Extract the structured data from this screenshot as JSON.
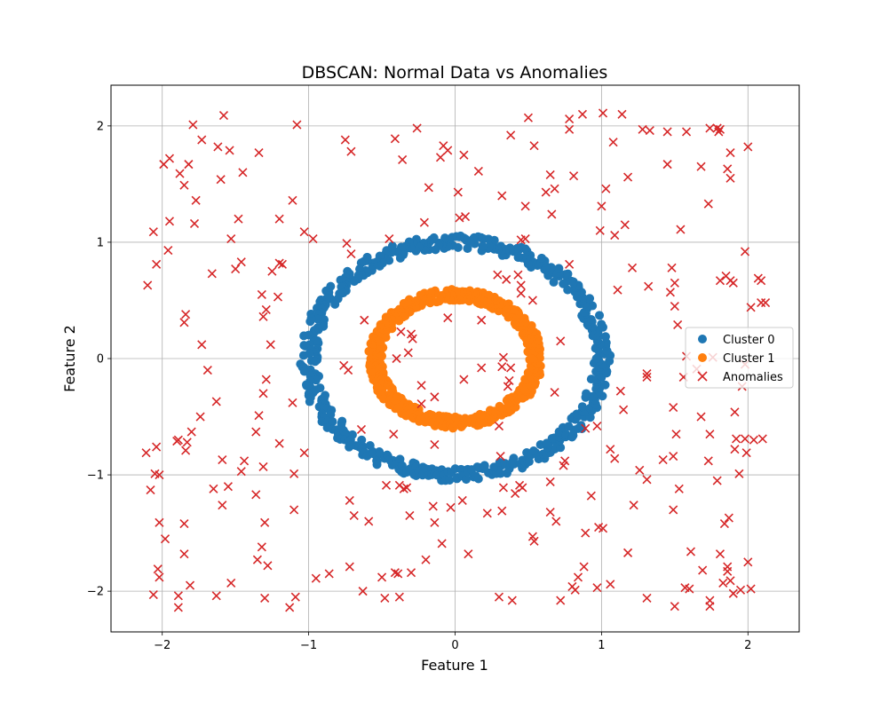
{
  "chart_data": {
    "type": "scatter",
    "title": "DBSCAN: Normal Data vs Anomalies",
    "xlabel": "Feature 1",
    "ylabel": "Feature 2",
    "xlim": [
      -2.35,
      2.35
    ],
    "ylim": [
      -2.35,
      2.35
    ],
    "xticks": [
      -2,
      -1,
      0,
      1,
      2
    ],
    "yticks": [
      -2,
      -1,
      0,
      1,
      2
    ],
    "xtick_labels": [
      "−2",
      "−1",
      "0",
      "1",
      "2"
    ],
    "ytick_labels": [
      "−2",
      "−1",
      "0",
      "1",
      "2"
    ],
    "grid": true,
    "legend_position": "center-right",
    "series": [
      {
        "name": "Cluster 0",
        "marker": "circle",
        "color": "#1f77b4",
        "shape": "ring",
        "center": [
          0,
          0
        ],
        "radius_mean": 1.0,
        "radius_spread": 0.06,
        "n_points": 500
      },
      {
        "name": "Cluster 1",
        "marker": "circle",
        "color": "#ff7f0e",
        "shape": "ring",
        "center": [
          0,
          0
        ],
        "radius_mean": 0.55,
        "radius_spread": 0.05,
        "n_points": 500
      },
      {
        "name": "Anomalies",
        "marker": "x",
        "color": "#d62728",
        "points": [
          [
            -2.1,
            0.63
          ],
          [
            -2.06,
            1.09
          ],
          [
            -2.04,
            0.81
          ],
          [
            -1.99,
            1.67
          ],
          [
            -1.95,
            1.72
          ],
          [
            -1.96,
            0.93
          ],
          [
            -1.95,
            1.18
          ],
          [
            -1.88,
            1.59
          ],
          [
            -1.85,
            1.49
          ],
          [
            -1.82,
            1.67
          ],
          [
            -1.79,
            2.01
          ],
          [
            -1.77,
            1.36
          ],
          [
            -1.78,
            1.16
          ],
          [
            -1.73,
            1.88
          ],
          [
            -1.58,
            2.09
          ],
          [
            -1.62,
            1.82
          ],
          [
            -1.6,
            1.54
          ],
          [
            -1.54,
            1.79
          ],
          [
            -1.48,
            1.2
          ],
          [
            -1.45,
            1.6
          ],
          [
            -1.53,
            1.03
          ],
          [
            -1.5,
            0.77
          ],
          [
            -1.46,
            0.83
          ],
          [
            -1.66,
            0.73
          ],
          [
            -1.34,
            1.77
          ],
          [
            -1.25,
            0.75
          ],
          [
            -1.2,
            0.82
          ],
          [
            -1.18,
            0.81
          ],
          [
            -1.2,
            1.2
          ],
          [
            -1.11,
            1.36
          ],
          [
            -1.08,
            2.01
          ],
          [
            -1.03,
            1.09
          ],
          [
            -0.97,
            1.03
          ],
          [
            -1.21,
            0.53
          ],
          [
            -1.32,
            0.55
          ],
          [
            -1.29,
            0.42
          ],
          [
            -1.31,
            0.36
          ],
          [
            -1.26,
            0.12
          ],
          [
            -1.84,
            0.38
          ],
          [
            -1.85,
            0.31
          ],
          [
            -1.73,
            0.12
          ],
          [
            -1.69,
            -0.1
          ],
          [
            -1.63,
            -0.37
          ],
          [
            -1.74,
            -0.5
          ],
          [
            -1.8,
            -0.63
          ],
          [
            -1.83,
            -0.72
          ],
          [
            -1.89,
            -0.7
          ],
          [
            -1.84,
            -0.79
          ],
          [
            -1.9,
            -0.71
          ],
          [
            -2.11,
            -0.81
          ],
          [
            -2.04,
            -0.76
          ],
          [
            -2.02,
            -1.0
          ],
          [
            -2.05,
            -0.99
          ],
          [
            -2.08,
            -1.13
          ],
          [
            -2.02,
            -1.41
          ],
          [
            -1.98,
            -1.55
          ],
          [
            -2.03,
            -1.81
          ],
          [
            -2.02,
            -1.88
          ],
          [
            -2.06,
            -2.03
          ],
          [
            -1.89,
            -2.04
          ],
          [
            -1.89,
            -2.14
          ],
          [
            -1.81,
            -1.95
          ],
          [
            -1.85,
            -1.68
          ],
          [
            -1.85,
            -1.42
          ],
          [
            -1.65,
            -1.12
          ],
          [
            -1.59,
            -0.87
          ],
          [
            -1.55,
            -1.1
          ],
          [
            -1.59,
            -1.26
          ],
          [
            -1.63,
            -2.04
          ],
          [
            -1.53,
            -1.93
          ],
          [
            -1.44,
            -0.88
          ],
          [
            -1.46,
            -0.97
          ],
          [
            -1.36,
            -1.17
          ],
          [
            -1.36,
            -0.63
          ],
          [
            -1.34,
            -0.49
          ],
          [
            -1.31,
            -0.3
          ],
          [
            -1.29,
            -0.18
          ],
          [
            -1.2,
            -0.73
          ],
          [
            -1.31,
            -0.93
          ],
          [
            -1.3,
            -1.41
          ],
          [
            -1.32,
            -1.62
          ],
          [
            -1.35,
            -1.73
          ],
          [
            -1.28,
            -1.78
          ],
          [
            -1.3,
            -2.06
          ],
          [
            -1.13,
            -2.14
          ],
          [
            -1.09,
            -2.05
          ],
          [
            -1.1,
            -1.3
          ],
          [
            -1.1,
            -0.99
          ],
          [
            -1.03,
            -0.81
          ],
          [
            -1.11,
            -0.38
          ],
          [
            -0.95,
            -1.89
          ],
          [
            -0.86,
            -1.85
          ],
          [
            -0.72,
            -1.79
          ],
          [
            -0.63,
            -2.0
          ],
          [
            -0.72,
            -1.22
          ],
          [
            -0.69,
            -1.35
          ],
          [
            -0.59,
            -1.4
          ],
          [
            -0.76,
            -0.06
          ],
          [
            -0.73,
            -0.1
          ],
          [
            -0.64,
            -0.61
          ],
          [
            -0.42,
            -0.65
          ],
          [
            -0.47,
            -1.09
          ],
          [
            -0.38,
            -1.09
          ],
          [
            -0.33,
            -1.11
          ],
          [
            -0.35,
            -1.12
          ],
          [
            -0.31,
            -1.35
          ],
          [
            -0.41,
            -1.84
          ],
          [
            -0.39,
            -1.85
          ],
          [
            -0.38,
            -2.05
          ],
          [
            -0.48,
            -2.06
          ],
          [
            -0.5,
            -1.88
          ],
          [
            -0.3,
            -1.84
          ],
          [
            -0.2,
            -1.73
          ],
          [
            -0.14,
            -1.41
          ],
          [
            -0.15,
            -1.27
          ],
          [
            -0.03,
            -1.28
          ],
          [
            -0.09,
            -1.59
          ],
          [
            0.09,
            -1.68
          ],
          [
            0.05,
            -1.22
          ],
          [
            -0.14,
            -0.74
          ],
          [
            -0.14,
            -0.33
          ],
          [
            -0.23,
            -0.39
          ],
          [
            -0.23,
            -0.23
          ],
          [
            -0.4,
            0.0
          ],
          [
            -0.32,
            0.05
          ],
          [
            -0.29,
            0.17
          ],
          [
            -0.37,
            0.23
          ],
          [
            -0.3,
            0.21
          ],
          [
            -0.62,
            0.33
          ],
          [
            -0.74,
            0.99
          ],
          [
            -0.71,
            0.9
          ],
          [
            -0.75,
            1.88
          ],
          [
            -0.71,
            1.78
          ],
          [
            -0.41,
            1.89
          ],
          [
            -0.36,
            1.71
          ],
          [
            -0.45,
            1.03
          ],
          [
            -0.26,
            1.98
          ],
          [
            -0.18,
            1.47
          ],
          [
            -0.21,
            1.17
          ],
          [
            -0.1,
            1.73
          ],
          [
            -0.08,
            1.83
          ],
          [
            -0.05,
            1.79
          ],
          [
            0.06,
            1.75
          ],
          [
            0.02,
            1.43
          ],
          [
            0.03,
            1.21
          ],
          [
            0.07,
            1.22
          ],
          [
            0.16,
            1.61
          ],
          [
            -0.05,
            0.35
          ],
          [
            0.18,
            0.33
          ],
          [
            0.06,
            -0.18
          ],
          [
            0.18,
            -0.08
          ],
          [
            0.32,
            -0.07
          ],
          [
            0.37,
            -0.19
          ],
          [
            0.36,
            -0.24
          ],
          [
            0.38,
            -0.08
          ],
          [
            0.33,
            0.01
          ],
          [
            0.29,
            0.72
          ],
          [
            0.35,
            0.68
          ],
          [
            0.45,
            0.63
          ],
          [
            0.45,
            0.56
          ],
          [
            0.43,
            0.72
          ],
          [
            0.53,
            0.5
          ],
          [
            0.3,
            -0.58
          ],
          [
            0.31,
            -0.84
          ],
          [
            0.33,
            -1.11
          ],
          [
            0.41,
            -1.16
          ],
          [
            0.46,
            -1.11
          ],
          [
            0.44,
            -1.09
          ],
          [
            0.22,
            -1.33
          ],
          [
            0.32,
            -1.31
          ],
          [
            0.53,
            -1.53
          ],
          [
            0.54,
            -1.57
          ],
          [
            0.3,
            -2.05
          ],
          [
            0.39,
            -2.08
          ],
          [
            0.72,
            -2.08
          ],
          [
            0.8,
            -1.96
          ],
          [
            0.82,
            -1.99
          ],
          [
            0.84,
            -1.88
          ],
          [
            0.88,
            -1.79
          ],
          [
            0.97,
            -1.97
          ],
          [
            1.06,
            -1.94
          ],
          [
            0.89,
            -1.5
          ],
          [
            0.98,
            -1.45
          ],
          [
            1.01,
            -1.46
          ],
          [
            0.93,
            -1.18
          ],
          [
            0.65,
            -1.06
          ],
          [
            0.65,
            -1.32
          ],
          [
            0.69,
            -1.4
          ],
          [
            0.75,
            -0.88
          ],
          [
            0.74,
            -0.92
          ],
          [
            0.68,
            -0.29
          ],
          [
            0.72,
            0.15
          ],
          [
            0.89,
            -0.6
          ],
          [
            0.97,
            -0.58
          ],
          [
            1.06,
            -0.78
          ],
          [
            1.09,
            -0.86
          ],
          [
            1.13,
            -0.28
          ],
          [
            1.15,
            -0.44
          ],
          [
            1.31,
            -0.13
          ],
          [
            1.31,
            -0.16
          ],
          [
            1.26,
            -0.96
          ],
          [
            1.31,
            -1.04
          ],
          [
            1.42,
            -0.87
          ],
          [
            1.49,
            -0.84
          ],
          [
            1.51,
            -0.65
          ],
          [
            1.49,
            -0.42
          ],
          [
            1.53,
            -1.12
          ],
          [
            1.49,
            -1.3
          ],
          [
            1.22,
            -1.26
          ],
          [
            1.18,
            -1.67
          ],
          [
            1.31,
            -2.06
          ],
          [
            1.5,
            -2.13
          ],
          [
            1.57,
            -1.97
          ],
          [
            1.6,
            -1.98
          ],
          [
            1.61,
            -1.66
          ],
          [
            1.69,
            -1.82
          ],
          [
            1.74,
            -2.08
          ],
          [
            1.74,
            -2.13
          ],
          [
            1.81,
            -1.68
          ],
          [
            1.83,
            -1.93
          ],
          [
            1.86,
            -1.79
          ],
          [
            1.86,
            -1.83
          ],
          [
            1.88,
            -1.91
          ],
          [
            1.9,
            -2.02
          ],
          [
            1.95,
            -1.99
          ],
          [
            2.0,
            -1.75
          ],
          [
            2.02,
            -1.98
          ],
          [
            1.84,
            -1.42
          ],
          [
            1.87,
            -1.37
          ],
          [
            1.79,
            -1.05
          ],
          [
            1.73,
            -0.88
          ],
          [
            1.74,
            -0.65
          ],
          [
            1.68,
            -0.5
          ],
          [
            1.56,
            -0.16
          ],
          [
            1.65,
            -0.09
          ],
          [
            1.58,
            0.02
          ],
          [
            1.76,
            0.01
          ],
          [
            1.94,
            -0.99
          ],
          [
            1.91,
            -0.78
          ],
          [
            1.92,
            -0.69
          ],
          [
            1.98,
            -0.69
          ],
          [
            1.99,
            -0.81
          ],
          [
            2.04,
            -0.7
          ],
          [
            2.1,
            -0.69
          ],
          [
            1.91,
            -0.46
          ],
          [
            1.96,
            -0.24
          ],
          [
            1.98,
            -0.05
          ],
          [
            2.02,
            0.44
          ],
          [
            2.07,
            0.69
          ],
          [
            2.09,
            0.67
          ],
          [
            2.09,
            0.48
          ],
          [
            2.12,
            0.48
          ],
          [
            1.98,
            0.92
          ],
          [
            1.81,
            0.67
          ],
          [
            1.85,
            0.71
          ],
          [
            1.88,
            0.67
          ],
          [
            1.9,
            0.65
          ],
          [
            1.52,
            0.29
          ],
          [
            1.5,
            0.45
          ],
          [
            1.5,
            0.65
          ],
          [
            1.47,
            0.57
          ],
          [
            1.48,
            0.78
          ],
          [
            1.32,
            0.62
          ],
          [
            1.21,
            0.78
          ],
          [
            1.11,
            0.59
          ],
          [
            1.16,
            1.15
          ],
          [
            1.09,
            1.06
          ],
          [
            1.0,
            1.31
          ],
          [
            1.03,
            1.46
          ],
          [
            0.99,
            1.1
          ],
          [
            1.08,
            1.86
          ],
          [
            1.14,
            2.1
          ],
          [
            1.01,
            2.11
          ],
          [
            0.87,
            2.1
          ],
          [
            0.78,
            2.06
          ],
          [
            0.78,
            1.97
          ],
          [
            0.81,
            1.57
          ],
          [
            0.65,
            1.58
          ],
          [
            0.68,
            1.46
          ],
          [
            0.62,
            1.43
          ],
          [
            0.66,
            1.24
          ],
          [
            0.54,
            1.83
          ],
          [
            0.5,
            2.07
          ],
          [
            0.38,
            1.92
          ],
          [
            0.32,
            1.4
          ],
          [
            0.48,
            1.31
          ],
          [
            0.45,
            1.02
          ],
          [
            0.48,
            1.03
          ],
          [
            0.78,
            0.81
          ],
          [
            1.18,
            1.56
          ],
          [
            1.28,
            1.97
          ],
          [
            1.33,
            1.96
          ],
          [
            1.45,
            1.95
          ],
          [
            1.58,
            1.95
          ],
          [
            1.45,
            1.67
          ],
          [
            1.54,
            1.11
          ],
          [
            1.68,
            1.65
          ],
          [
            1.73,
            1.33
          ],
          [
            1.74,
            1.98
          ],
          [
            1.79,
            1.98
          ],
          [
            1.8,
            1.95
          ],
          [
            1.81,
            1.97
          ],
          [
            1.86,
            1.63
          ],
          [
            1.88,
            1.77
          ],
          [
            1.88,
            1.55
          ],
          [
            2.0,
            1.82
          ]
        ]
      }
    ]
  }
}
